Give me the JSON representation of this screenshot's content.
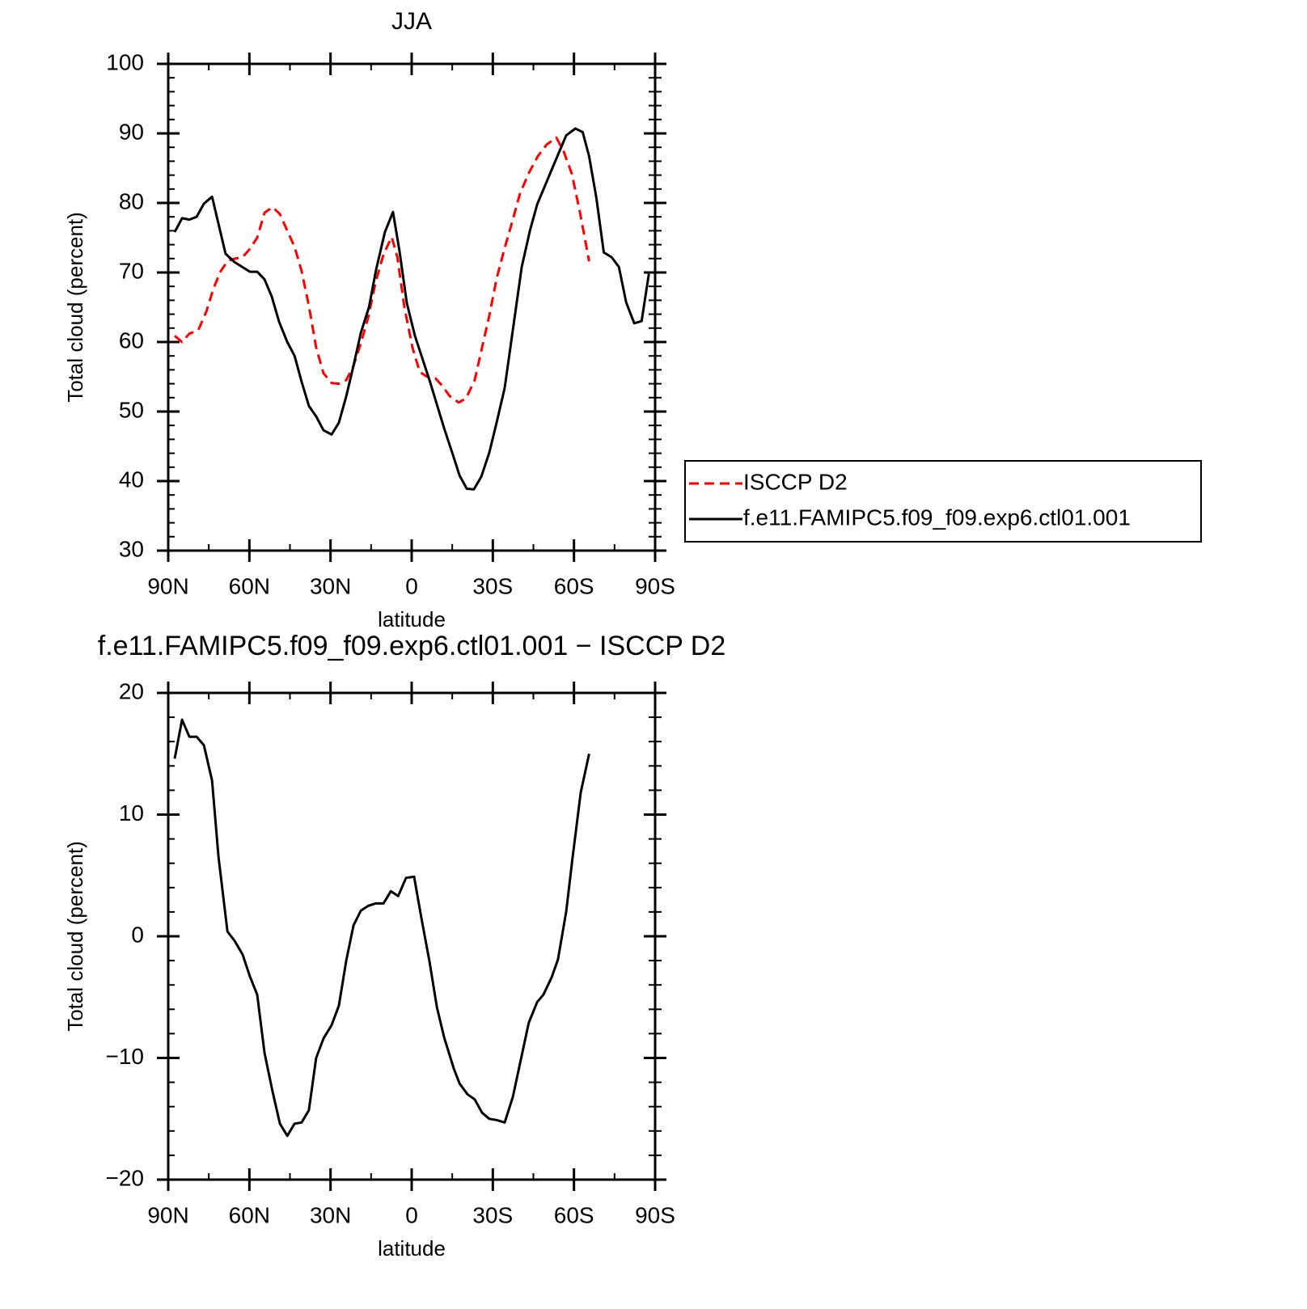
{
  "chart_data": [
    {
      "type": "line",
      "title": "JJA",
      "xlabel": "latitude",
      "ylabel": "Total cloud (percent)",
      "xlim": [
        90,
        -90
      ],
      "xticks": [
        {
          "value": 90,
          "label": "90N"
        },
        {
          "value": 60,
          "label": "60N"
        },
        {
          "value": 30,
          "label": "30N"
        },
        0,
        {
          "value": -30,
          "label": "30S"
        },
        {
          "value": -60,
          "label": "60S"
        },
        {
          "value": -90,
          "label": "90S"
        }
      ],
      "ylim": [
        30,
        100
      ],
      "yticks": [
        30,
        40,
        50,
        60,
        70,
        80,
        90,
        100
      ],
      "legend": "right",
      "series": [
        {
          "name": "ISCCP D2",
          "color": "#ff0000",
          "style": "dashed",
          "x": [
            87.6,
            84.9,
            82.2,
            78.9,
            75.9,
            73.3,
            70.6,
            67.9,
            65.2,
            62.5,
            59.8,
            57.1,
            54.4,
            51.4,
            48.7,
            46,
            43.3,
            40.7,
            38,
            35.3,
            32.6,
            29.6,
            26.9,
            24.2,
            21.5,
            18.8,
            16.1,
            13.4,
            10.4,
            7.4,
            5.3,
            2.7,
            -0.3,
            -3,
            -5.7,
            -8.7,
            -11.1,
            -14.1,
            -17.4,
            -20.1,
            -23.3,
            -26,
            -28.7,
            -31.4,
            -34.1,
            -37.1,
            -40,
            -43.3,
            -46.6,
            -49.9,
            -53.5,
            -56.2,
            -59.2,
            -62.2,
            -65.6
          ],
          "values": [
            60.9,
            60,
            61.2,
            61.7,
            64.4,
            67.7,
            70.2,
            71.7,
            72,
            72.2,
            73.4,
            75,
            78.6,
            79.4,
            78.4,
            76,
            73.7,
            70.2,
            65.2,
            59.2,
            55.5,
            54.1,
            54,
            54.5,
            56.6,
            59.8,
            63.5,
            68.5,
            72.6,
            75.1,
            72.2,
            65,
            59.2,
            55.7,
            55,
            54.8,
            53.8,
            52.2,
            51.3,
            51.9,
            54.5,
            59.2,
            63.8,
            69.1,
            73.1,
            77.2,
            81.3,
            84.3,
            86.7,
            88.4,
            89.4,
            87.4,
            84.2,
            78.7,
            71.6
          ]
        },
        {
          "name": "f.e11.FAMIPC5.f09_f09.exp6.ctl01.001",
          "color": "#000000",
          "style": "solid",
          "x": [
            87.6,
            84.9,
            82.2,
            79.5,
            76.8,
            73.8,
            68.8,
            65.5,
            59.8,
            57.1,
            54.4,
            51.7,
            49,
            46,
            43.3,
            40.7,
            38,
            35.3,
            32.6,
            29.6,
            26.9,
            24.2,
            21.5,
            18.8,
            15.8,
            13.1,
            9.9,
            6.9,
            4.5,
            1.8,
            -1.2,
            -6.6,
            -12,
            -15.3,
            -17.7,
            -20.4,
            -23,
            -25.7,
            -28.7,
            -31.4,
            -34.4,
            -40.7,
            -43.7,
            -46.4,
            -52,
            -57.1,
            -60.5,
            -63.2,
            -65.6,
            -68.3,
            -71,
            -73.9,
            -76.6,
            -79.3,
            -82.3,
            -85,
            -87.7
          ],
          "values": [
            75.8,
            77.8,
            77.6,
            78,
            79.9,
            80.9,
            72.7,
            71.5,
            70.1,
            70.1,
            69,
            66.5,
            62.9,
            60,
            58,
            54.3,
            50.8,
            49.3,
            47.3,
            46.7,
            48.4,
            52.2,
            56.6,
            61.3,
            65,
            70.5,
            75.8,
            78.7,
            73.1,
            65.6,
            60.9,
            54.5,
            47.6,
            43.7,
            40.8,
            38.9,
            38.8,
            40.6,
            44.1,
            48.4,
            53.4,
            70.8,
            76,
            79.8,
            85,
            89.7,
            90.7,
            90.2,
            86.7,
            80.7,
            72.9,
            72.2,
            70.8,
            65.7,
            62.7,
            63,
            69.8
          ]
        }
      ]
    },
    {
      "type": "line",
      "title": "f.e11.FAMIPC5.f09_f09.exp6.ctl01.001 − ISCCP D2",
      "xlabel": "latitude",
      "ylabel": "Total cloud (percent)",
      "xlim": [
        90,
        -90
      ],
      "xticks": [
        {
          "value": 90,
          "label": "90N"
        },
        {
          "value": 60,
          "label": "60N"
        },
        {
          "value": 30,
          "label": "30N"
        },
        0,
        {
          "value": -30,
          "label": "30S"
        },
        {
          "value": -60,
          "label": "60S"
        },
        {
          "value": -90,
          "label": "90S"
        }
      ],
      "ylim": [
        -20,
        20
      ],
      "yticks": [
        {
          "value": -20,
          "label": "−20"
        },
        {
          "value": -10,
          "label": "−10"
        },
        0,
        10,
        20
      ],
      "series": [
        {
          "color": "#000000",
          "style": "solid",
          "x": [
            87.6,
            84.9,
            82.2,
            79.5,
            76.8,
            73.8,
            71.4,
            68.1,
            65.4,
            62.5,
            59.8,
            57.1,
            54.4,
            51.4,
            48.7,
            46,
            43.3,
            40.7,
            38,
            35.3,
            32.6,
            29.6,
            26.9,
            24.2,
            21.5,
            18.8,
            16.1,
            13.4,
            10.4,
            7.7,
            5,
            2.1,
            -0.9,
            -3.6,
            -6.6,
            -9.3,
            -12,
            -15.6,
            -17.7,
            -20.7,
            -23.3,
            -26,
            -28.7,
            -31.4,
            -34.4,
            -37.4,
            -40.4,
            -43.3,
            -46.4,
            -48.7,
            -51.7,
            -54.1,
            -57.1,
            -59.5,
            -62.5,
            -65.6
          ],
          "values": [
            14.6,
            17.8,
            16.4,
            16.4,
            15.7,
            12.8,
            6.5,
            0.4,
            -0.4,
            -1.5,
            -3.3,
            -4.8,
            -9.6,
            -12.8,
            -15.4,
            -16.4,
            -15.4,
            -15.3,
            -14.3,
            -10,
            -8.4,
            -7.3,
            -5.7,
            -2,
            0.9,
            2.1,
            2.5,
            2.7,
            2.7,
            3.7,
            3.3,
            4.8,
            4.9,
            1.5,
            -2.1,
            -5.8,
            -8.3,
            -10.9,
            -12.1,
            -13,
            -13.4,
            -14.5,
            -15,
            -15.1,
            -15.3,
            -13.2,
            -10.1,
            -7.1,
            -5.4,
            -4.8,
            -3.4,
            -1.9,
            2,
            6.5,
            11.8,
            15
          ]
        }
      ]
    }
  ]
}
